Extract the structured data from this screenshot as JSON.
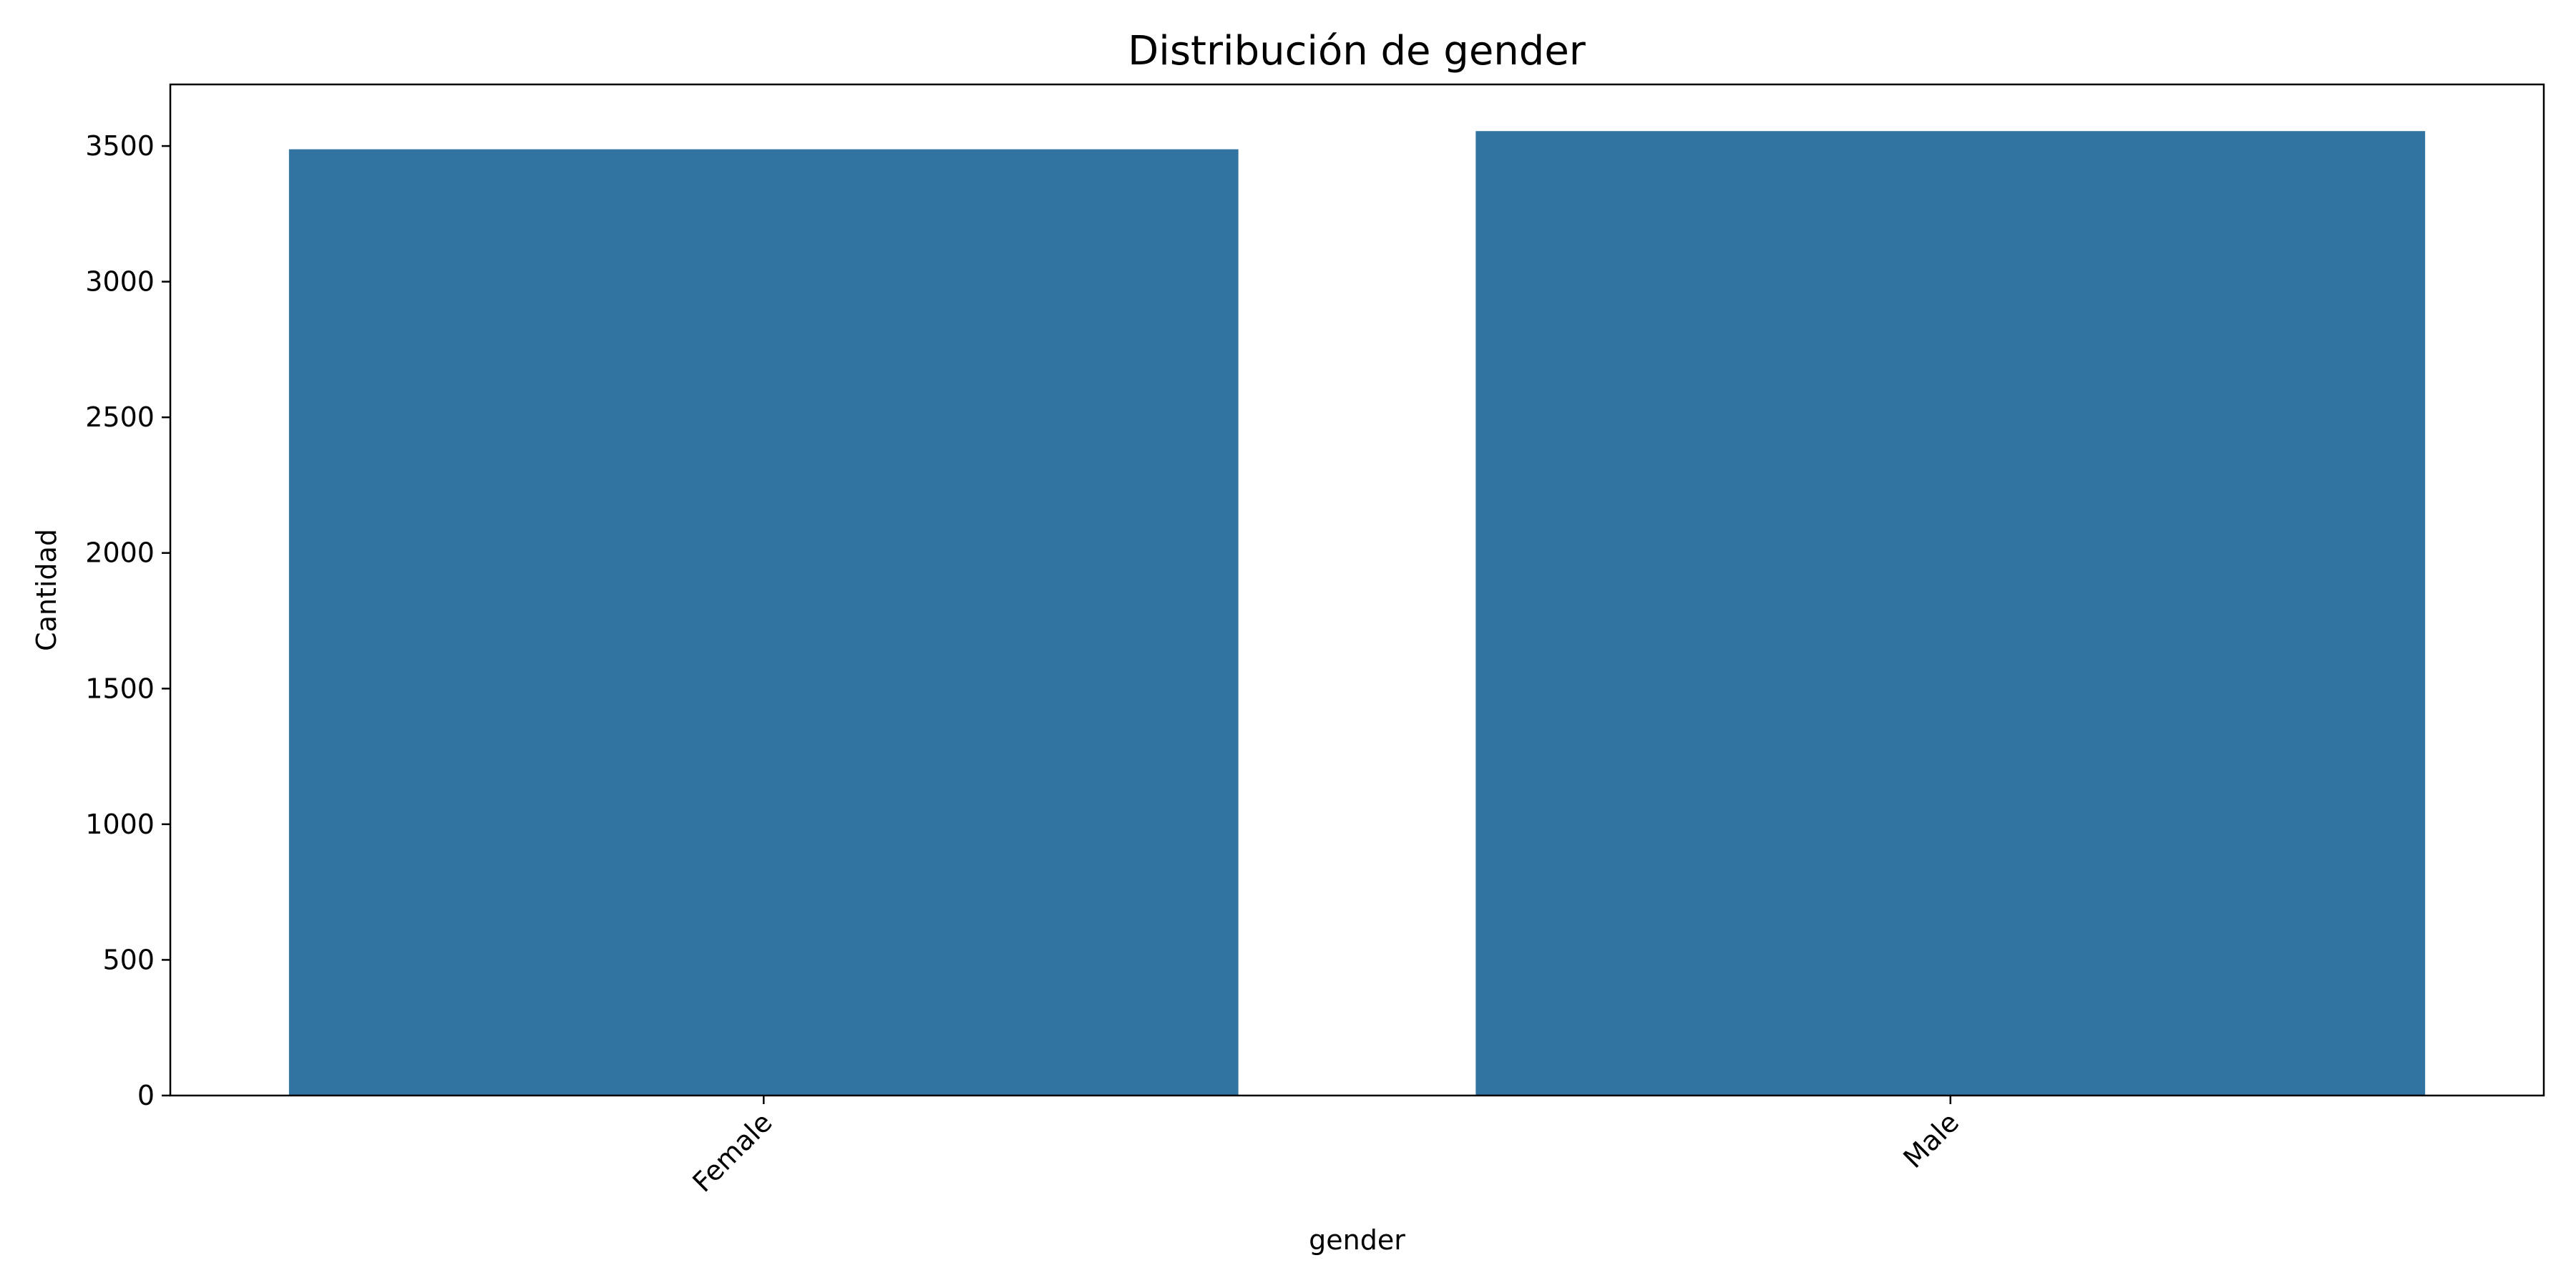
{
  "chart_data": {
    "type": "bar",
    "title": "Distribución de gender",
    "xlabel": "gender",
    "ylabel": "Cantidad",
    "categories": [
      "Female",
      "Male"
    ],
    "values": [
      3488,
      3555
    ],
    "ylim": [
      0,
      3727
    ],
    "yticks": [
      0,
      500,
      1000,
      1500,
      2000,
      2500,
      3000,
      3500
    ],
    "xtick_rotation": 45,
    "grid": false,
    "bar_color": "#3274a1"
  }
}
